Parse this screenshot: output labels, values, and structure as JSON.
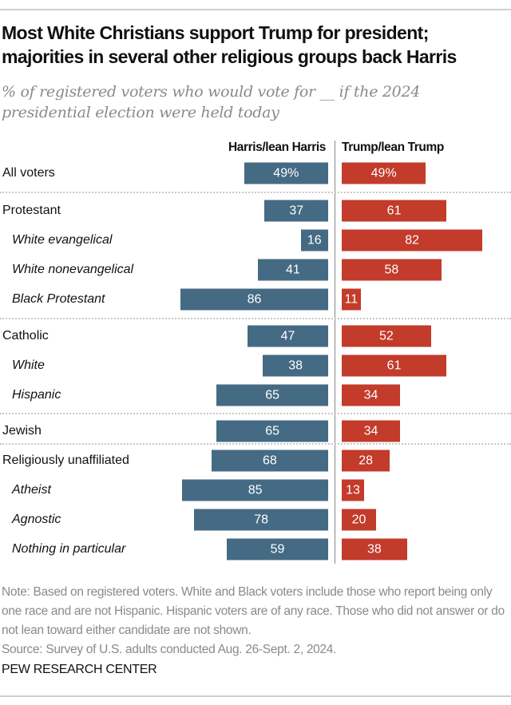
{
  "chart_data": {
    "type": "bar",
    "orientation": "horizontal-diverging",
    "title": "Most White Christians support Trump for president; majorities in several other religious groups back Harris",
    "subtitle": "% of registered voters who would vote for __ if the 2024 presidential election were held today",
    "series": [
      {
        "name": "Harris/lean Harris",
        "color": "#456a84",
        "values": [
          49,
          37,
          16,
          41,
          86,
          47,
          38,
          65,
          65,
          68,
          85,
          78,
          59
        ]
      },
      {
        "name": "Trump/lean Trump",
        "color": "#c23b2b",
        "values": [
          49,
          61,
          82,
          58,
          11,
          52,
          61,
          34,
          34,
          28,
          13,
          20,
          38
        ]
      }
    ],
    "categories": [
      "All voters",
      "Protestant",
      "White evangelical",
      "White nonevangelical",
      "Black Protestant",
      "Catholic",
      "White",
      "Hispanic",
      "Jewish",
      "Religiously unaffiliated",
      "Atheist",
      "Agnostic",
      "Nothing in particular"
    ],
    "subgroup": [
      false,
      false,
      true,
      true,
      true,
      false,
      true,
      true,
      false,
      false,
      true,
      true,
      true
    ],
    "group_separators_after": [
      0,
      4,
      7,
      8
    ],
    "first_label_suffix": "%",
    "xlim": [
      0,
      100
    ]
  },
  "notes": {
    "note": "Note: Based on registered voters. White and Black voters include those who report being only one race and are not Hispanic. Hispanic voters are of any race. Those who did not answer or do not lean toward either candidate are not shown.",
    "source": "Source: Survey of U.S. adults conducted Aug. 26-Sept. 2, 2024."
  },
  "brand": "PEW RESEARCH CENTER"
}
